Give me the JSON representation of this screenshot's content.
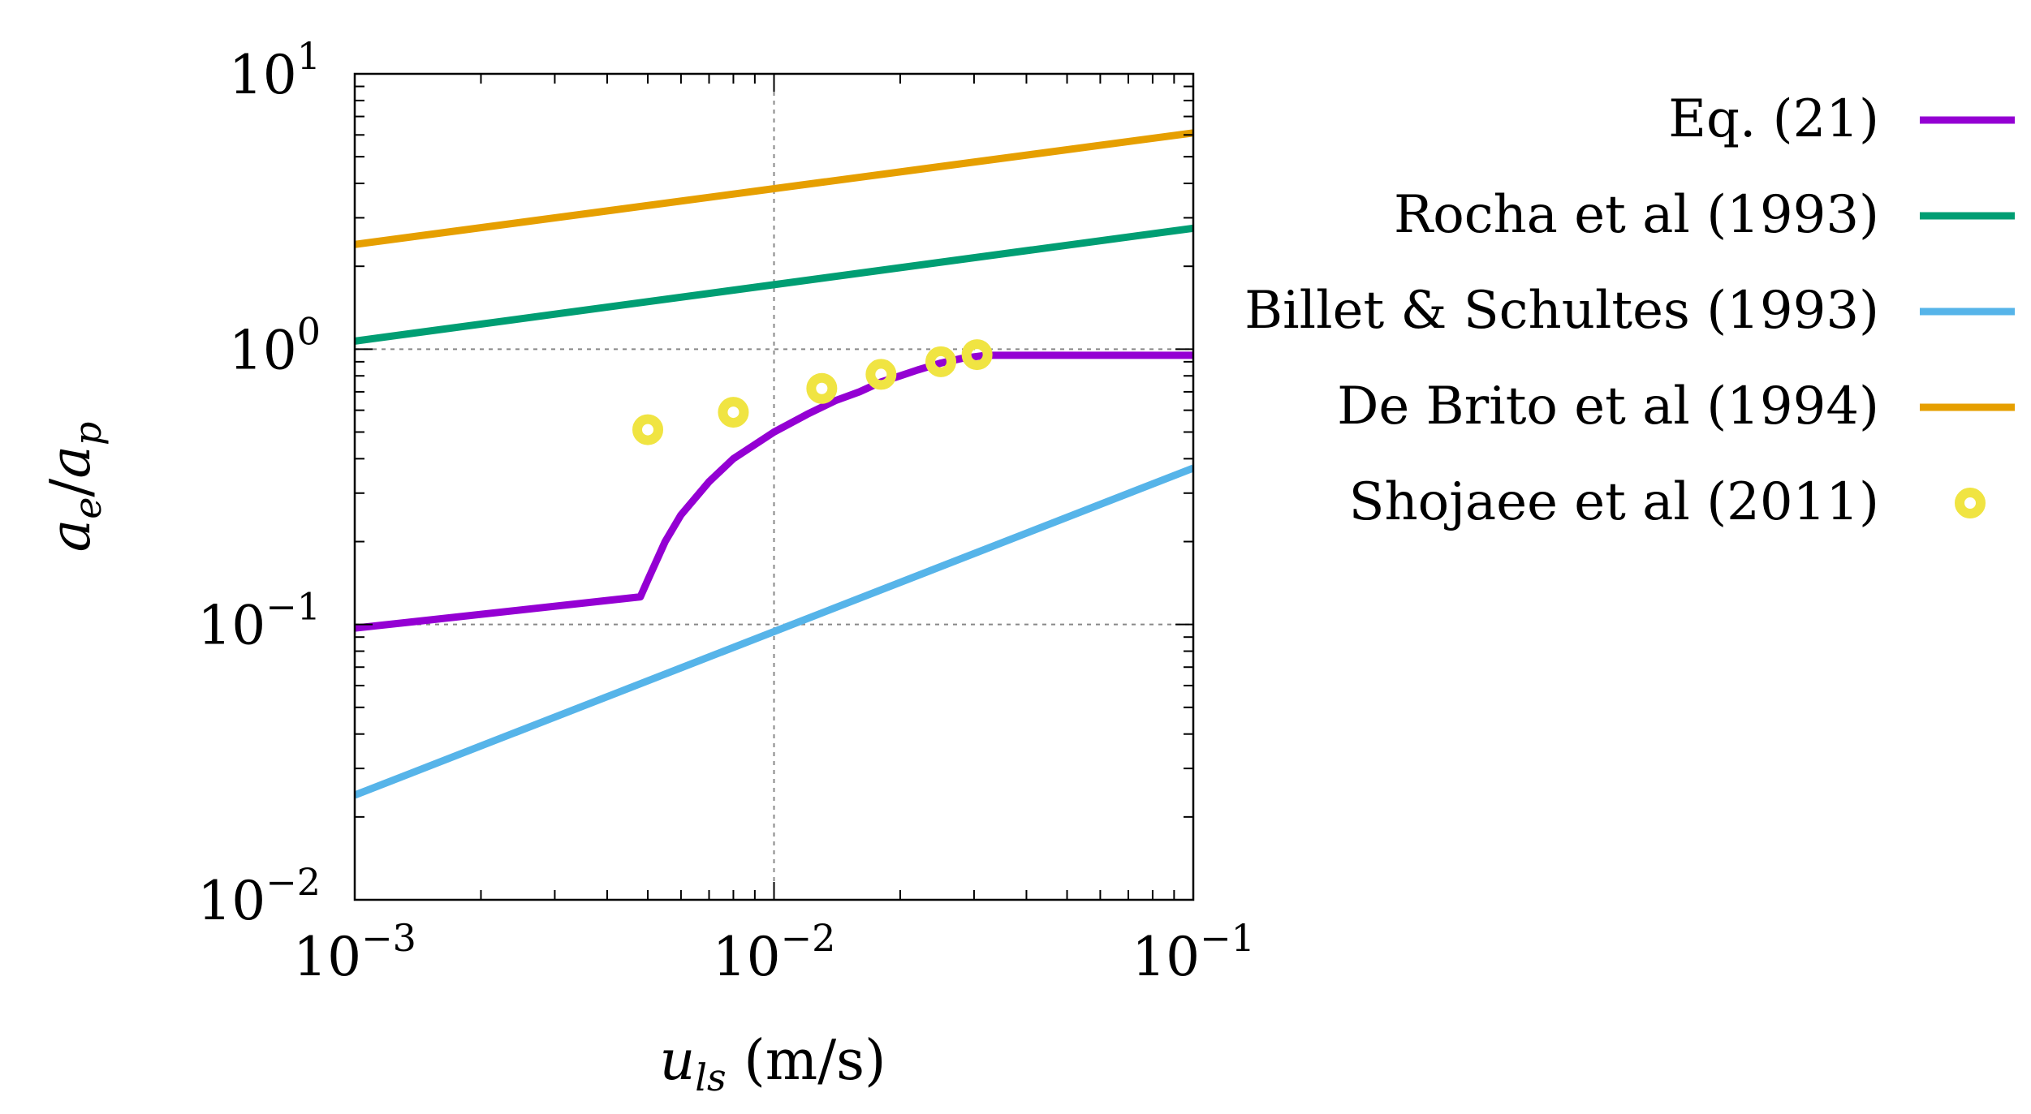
{
  "chart_data": {
    "type": "line",
    "xscale": "log",
    "yscale": "log",
    "xlim": [
      0.001,
      0.1
    ],
    "ylim": [
      0.01,
      10
    ],
    "grid": true,
    "legend_position": "right",
    "xlabel": {
      "main": "u",
      "sub": "ls",
      "unit": " (m/s)"
    },
    "ylabel": {
      "a": "a",
      "sub1": "e",
      "slash": "/",
      "b": "a",
      "sub2": "p"
    },
    "x_ticks": [
      {
        "value": 0.001,
        "base": "10",
        "exp": "−3"
      },
      {
        "value": 0.01,
        "base": "10",
        "exp": "−2"
      },
      {
        "value": 0.1,
        "base": "10",
        "exp": "−1"
      }
    ],
    "y_ticks": [
      {
        "value": 0.01,
        "base": "10",
        "exp": "−2"
      },
      {
        "value": 0.1,
        "base": "10",
        "exp": "−1"
      },
      {
        "value": 1,
        "base": "10",
        "exp": "0"
      },
      {
        "value": 10,
        "base": "10",
        "exp": "1"
      }
    ],
    "series": [
      {
        "name": "Eq. (21)",
        "kind": "line",
        "color": "#9400d3",
        "points": [
          [
            0.001,
            0.097
          ],
          [
            0.0048,
            0.126
          ],
          [
            0.005,
            0.145
          ],
          [
            0.0055,
            0.2
          ],
          [
            0.006,
            0.25
          ],
          [
            0.007,
            0.33
          ],
          [
            0.008,
            0.4
          ],
          [
            0.009,
            0.45
          ],
          [
            0.01,
            0.5
          ],
          [
            0.012,
            0.58
          ],
          [
            0.014,
            0.65
          ],
          [
            0.016,
            0.7
          ],
          [
            0.018,
            0.76
          ],
          [
            0.02,
            0.8
          ],
          [
            0.022,
            0.84
          ],
          [
            0.025,
            0.89
          ],
          [
            0.028,
            0.925
          ],
          [
            0.032,
            0.95
          ],
          [
            0.035,
            0.95
          ],
          [
            0.1,
            0.95
          ]
        ]
      },
      {
        "name": "Rocha et al (1993)",
        "kind": "line",
        "color": "#009e73",
        "points": [
          [
            0.001,
            1.07
          ],
          [
            0.1,
            2.75
          ]
        ]
      },
      {
        "name": "Billet & Schultes (1993)",
        "kind": "line",
        "color": "#56b4e9",
        "points": [
          [
            0.001,
            0.024
          ],
          [
            0.1,
            0.37
          ]
        ]
      },
      {
        "name": "De Brito et al (1994)",
        "kind": "line",
        "color": "#e69f00",
        "points": [
          [
            0.001,
            2.4
          ],
          [
            0.1,
            6.1
          ]
        ]
      },
      {
        "name": "Shojaee et al (2011)",
        "kind": "scatter",
        "color": "#f0e442",
        "points": [
          [
            0.005,
            0.51
          ],
          [
            0.008,
            0.59
          ],
          [
            0.013,
            0.72
          ],
          [
            0.018,
            0.81
          ],
          [
            0.025,
            0.9
          ],
          [
            0.0305,
            0.955
          ]
        ]
      }
    ]
  }
}
